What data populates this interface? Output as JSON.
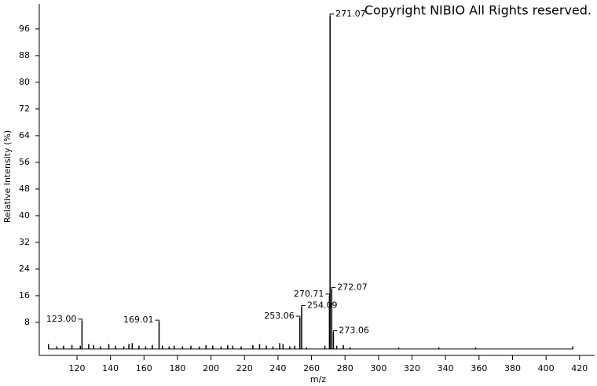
{
  "chart_data": {
    "type": "stem",
    "watermark": "Copyright NIBIO All Rights reserved.",
    "x_label": "m/z",
    "y_label": "Relative Intensity (%)",
    "color": "#000000",
    "x": [
      103,
      108,
      112,
      117,
      122,
      123.0,
      127,
      130,
      134,
      139,
      143,
      148,
      151,
      153,
      157,
      161,
      165,
      169.01,
      171,
      175,
      178,
      183,
      188,
      193,
      197,
      201,
      206,
      210,
      213,
      218,
      225,
      229,
      233,
      237,
      241,
      243,
      247,
      250,
      253.06,
      254.09,
      257,
      268,
      270.71,
      271.07,
      272.07,
      273.06,
      275,
      279,
      283,
      312,
      336,
      358,
      416
    ],
    "values": [
      1.5,
      0.8,
      1,
      1.2,
      1,
      8.5,
      1.5,
      1.2,
      0.8,
      1.5,
      1,
      0.8,
      1.5,
      1.8,
      1,
      0.8,
      1.2,
      8.2,
      1,
      0.8,
      1,
      0.8,
      1,
      0.8,
      1.2,
      1,
      0.8,
      1.2,
      1,
      0.8,
      1.2,
      1.5,
      1,
      0.8,
      1.8,
      1.5,
      0.8,
      1,
      9.4,
      12.6,
      0.5,
      1,
      16,
      100,
      18,
      5,
      1,
      1.2,
      0.5,
      0.5,
      0.5,
      0.5,
      0.8
    ],
    "x_labels": [
      null,
      null,
      null,
      null,
      null,
      "123.00",
      null,
      null,
      null,
      null,
      null,
      null,
      null,
      null,
      null,
      null,
      null,
      "169.01",
      null,
      null,
      null,
      null,
      null,
      null,
      null,
      null,
      null,
      null,
      null,
      null,
      null,
      null,
      null,
      null,
      null,
      null,
      null,
      null,
      "253.06",
      "254.09",
      null,
      null,
      "270.71",
      "271.07",
      "272.07",
      "273.06",
      null,
      null,
      null,
      null,
      null,
      null,
      null
    ],
    "xlim": [
      97.5,
      429
    ],
    "ylim": [
      -1.9,
      103.5
    ],
    "xticks": [
      120,
      140,
      160,
      180,
      200,
      220,
      240,
      260,
      280,
      300,
      320,
      340,
      360,
      380,
      400,
      420
    ],
    "yticks": [
      8,
      16,
      24,
      32,
      40,
      48,
      56,
      64,
      72,
      80,
      88,
      96
    ]
  }
}
